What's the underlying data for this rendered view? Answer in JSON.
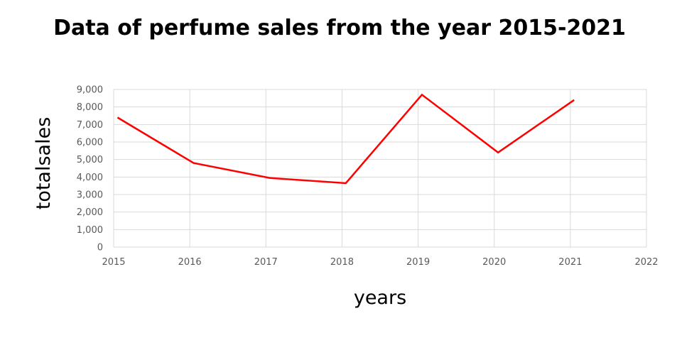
{
  "chart_data": {
    "type": "line",
    "title": "Data of perfume sales from the year 2015-2021",
    "xlabel": "years",
    "ylabel": "totalsales",
    "xlim": [
      2015,
      2022
    ],
    "ylim": [
      0,
      9000
    ],
    "x_ticks": [
      "2015",
      "2016",
      "2017",
      "2018",
      "2019",
      "2020",
      "2021",
      "2022"
    ],
    "y_ticks": [
      "0",
      "1,000",
      "2,000",
      "3,000",
      "4,000",
      "5,000",
      "6,000",
      "7,000",
      "8,000",
      "9,000"
    ],
    "grid": true,
    "legend": "none",
    "series": [
      {
        "color": "#ff0000",
        "x": [
          2015.05,
          2016.05,
          2017.05,
          2018.05,
          2019.05,
          2020.05,
          2021.05
        ],
        "values": [
          7400,
          4800,
          3950,
          3650,
          8700,
          5400,
          8400
        ]
      }
    ]
  }
}
